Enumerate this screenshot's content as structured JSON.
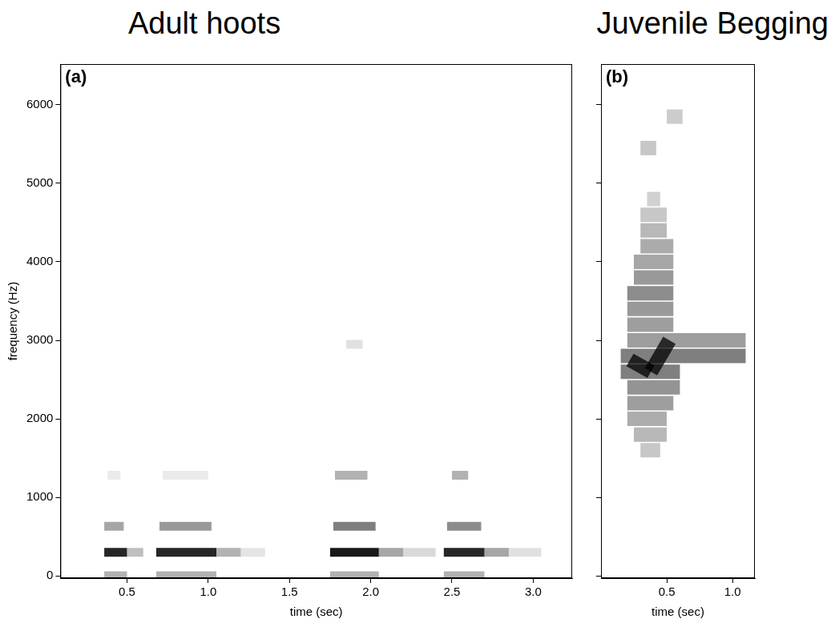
{
  "chart_data": [
    {
      "type": "spectrogram",
      "title": "Adult hoots",
      "annotations": [
        "(a)"
      ],
      "x_label": "time (sec)",
      "y_label": "frequency (Hz)",
      "xlim": [
        0.09,
        3.24
      ],
      "xticks": [
        0.5,
        {
          "value": 1,
          "label": "1.0"
        },
        1.5,
        {
          "value": 2,
          "label": "2.0"
        },
        2.5,
        {
          "value": 3,
          "label": "3.0"
        }
      ],
      "ylim": [
        -30,
        6520
      ],
      "yticks": [
        0,
        1000,
        2000,
        3000,
        4000,
        5000,
        6000
      ],
      "grid": false,
      "color": "#000000",
      "segments": [
        {
          "t": [
            0.36,
            0.5
          ],
          "f": [
            300,
            300
          ],
          "level": 0.85
        },
        {
          "t": [
            0.36,
            0.48
          ],
          "f": [
            630,
            630
          ],
          "level": 0.35
        },
        {
          "t": [
            0.36,
            0.5
          ],
          "f": [
            0,
            0
          ],
          "level": 0.3
        },
        {
          "t": [
            0.38,
            0.46
          ],
          "f": [
            1280,
            1280
          ],
          "level": 0.08
        },
        {
          "t": [
            0.5,
            0.6
          ],
          "f": [
            300,
            300
          ],
          "level": 0.25
        },
        {
          "t": [
            0.68,
            1.05
          ],
          "f": [
            300,
            300
          ],
          "level": 0.85
        },
        {
          "t": [
            0.7,
            1.02
          ],
          "f": [
            630,
            630
          ],
          "level": 0.4
        },
        {
          "t": [
            0.68,
            1.05
          ],
          "f": [
            0,
            0
          ],
          "level": 0.3
        },
        {
          "t": [
            0.72,
            1.0
          ],
          "f": [
            1280,
            1280
          ],
          "level": 0.08
        },
        {
          "t": [
            1.05,
            1.2
          ],
          "f": [
            300,
            300
          ],
          "level": 0.3
        },
        {
          "t": [
            1.2,
            1.35
          ],
          "f": [
            300,
            300
          ],
          "level": 0.1
        },
        {
          "t": [
            1.75,
            2.05
          ],
          "f": [
            300,
            300
          ],
          "level": 0.9
        },
        {
          "t": [
            1.77,
            2.03
          ],
          "f": [
            630,
            630
          ],
          "level": 0.5
        },
        {
          "t": [
            1.75,
            2.05
          ],
          "f": [
            0,
            0
          ],
          "level": 0.3
        },
        {
          "t": [
            1.78,
            1.98
          ],
          "f": [
            1280,
            1280
          ],
          "level": 0.3
        },
        {
          "t": [
            1.85,
            1.95
          ],
          "f": [
            2950,
            2950
          ],
          "level": 0.12
        },
        {
          "t": [
            2.05,
            2.2
          ],
          "f": [
            300,
            300
          ],
          "level": 0.35
        },
        {
          "t": [
            2.2,
            2.4
          ],
          "f": [
            300,
            300
          ],
          "level": 0.15
        },
        {
          "t": [
            2.45,
            2.7
          ],
          "f": [
            300,
            300
          ],
          "level": 0.85
        },
        {
          "t": [
            2.47,
            2.68
          ],
          "f": [
            630,
            630
          ],
          "level": 0.45
        },
        {
          "t": [
            2.45,
            2.7
          ],
          "f": [
            0,
            0
          ],
          "level": 0.3
        },
        {
          "t": [
            2.5,
            2.6
          ],
          "f": [
            1280,
            1280
          ],
          "level": 0.3
        },
        {
          "t": [
            2.7,
            2.85
          ],
          "f": [
            300,
            300
          ],
          "level": 0.35
        },
        {
          "t": [
            2.85,
            3.05
          ],
          "f": [
            300,
            300
          ],
          "level": 0.12
        }
      ]
    },
    {
      "type": "spectrogram",
      "title": "Juvenile Begging",
      "annotations": [
        "(b)"
      ],
      "x_label": "time (sec)",
      "xlim": [
        0,
        1.17
      ],
      "xticks": [
        0.5,
        {
          "value": 1,
          "label": "1.0"
        }
      ],
      "ylim": [
        -30,
        6520
      ],
      "yticks": [
        0,
        1000,
        2000,
        3000,
        4000,
        5000,
        6000
      ],
      "tick_labels": "x",
      "grid": false,
      "color": "#000000",
      "segments": [
        {
          "t": [
            0.3,
            0.45
          ],
          "f": [
            1600,
            1600
          ],
          "level": 0.22
        },
        {
          "t": [
            0.25,
            0.5
          ],
          "f": [
            1800,
            1800
          ],
          "level": 0.28
        },
        {
          "t": [
            0.2,
            0.5
          ],
          "f": [
            2000,
            2000
          ],
          "level": 0.32
        },
        {
          "t": [
            0.2,
            0.55
          ],
          "f": [
            2200,
            2200
          ],
          "level": 0.38
        },
        {
          "t": [
            0.2,
            0.6
          ],
          "f": [
            2400,
            2400
          ],
          "level": 0.42
        },
        {
          "t": [
            0.15,
            0.6
          ],
          "f": [
            2600,
            2600
          ],
          "level": 0.5
        },
        {
          "t": [
            0.15,
            1.1
          ],
          "f": [
            2800,
            2800
          ],
          "level": 0.5
        },
        {
          "t": [
            0.2,
            1.1
          ],
          "f": [
            3000,
            3000
          ],
          "level": 0.38
        },
        {
          "t": [
            0.2,
            0.55
          ],
          "f": [
            3200,
            3200
          ],
          "level": 0.38
        },
        {
          "t": [
            0.2,
            0.55
          ],
          "f": [
            3400,
            3400
          ],
          "level": 0.4
        },
        {
          "t": [
            0.2,
            0.55
          ],
          "f": [
            3600,
            3600
          ],
          "level": 0.45
        },
        {
          "t": [
            0.25,
            0.55
          ],
          "f": [
            3800,
            3800
          ],
          "level": 0.4
        },
        {
          "t": [
            0.25,
            0.55
          ],
          "f": [
            4000,
            4000
          ],
          "level": 0.35
        },
        {
          "t": [
            0.3,
            0.55
          ],
          "f": [
            4200,
            4200
          ],
          "level": 0.33
        },
        {
          "t": [
            0.3,
            0.5
          ],
          "f": [
            4400,
            4400
          ],
          "level": 0.28
        },
        {
          "t": [
            0.3,
            0.5
          ],
          "f": [
            4600,
            4600
          ],
          "level": 0.22
        },
        {
          "t": [
            0.35,
            0.45
          ],
          "f": [
            4800,
            4800
          ],
          "level": 0.18
        },
        {
          "t": [
            0.3,
            0.42
          ],
          "f": [
            5450,
            5450
          ],
          "level": 0.22
        },
        {
          "t": [
            0.5,
            0.62
          ],
          "f": [
            5850,
            5850
          ],
          "level": 0.2
        },
        {
          "t": [
            0.22,
            0.38
          ],
          "f": [
            2750,
            2600
          ],
          "level": 0.75
        },
        {
          "t": [
            0.38,
            0.52
          ],
          "f": [
            2600,
            3000
          ],
          "level": 0.75
        }
      ]
    }
  ]
}
